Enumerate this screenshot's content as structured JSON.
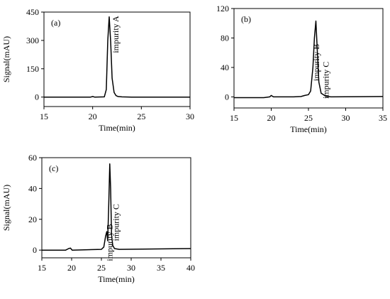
{
  "colors": {
    "background": "#ffffff",
    "axes": "#000000",
    "trace": "#000000"
  },
  "chart_data": [
    {
      "type": "line",
      "panel_label": "(a)",
      "xlabel": "Time(min)",
      "ylabel": "Signal(mAU)",
      "xlim": [
        15,
        30
      ],
      "ylim": [
        -50,
        450
      ],
      "xticks": [
        15,
        20,
        25,
        30
      ],
      "yticks": [
        0,
        150,
        300,
        450
      ],
      "grid": false,
      "annotations": [
        {
          "text": "impurity A",
          "x": 22.0,
          "y": 430
        }
      ],
      "series": [
        {
          "x": [
            15,
            19.8,
            20.0,
            20.2,
            21.2,
            21.4,
            21.55,
            21.7,
            21.85,
            22.0,
            22.2,
            22.4,
            22.6,
            23.0,
            24,
            30
          ],
          "y": [
            0,
            0,
            3,
            0,
            1,
            40,
            300,
            425,
            290,
            100,
            25,
            8,
            3,
            1,
            0,
            0
          ]
        }
      ]
    },
    {
      "type": "line",
      "panel_label": "(b)",
      "xlabel": "Time(min)",
      "ylabel": "",
      "xlim": [
        15,
        35
      ],
      "ylim": [
        -15,
        120
      ],
      "xticks": [
        15,
        20,
        25,
        30,
        35
      ],
      "yticks": [
        0,
        40,
        80,
        120
      ],
      "grid": false,
      "annotations": [
        {
          "text": "impurity B",
          "x": 25.6,
          "y": 72
        },
        {
          "text": "impurity C",
          "x": 26.9,
          "y": 48
        }
      ],
      "series": [
        {
          "x": [
            15,
            19,
            19.8,
            20.0,
            20.3,
            23,
            24,
            24.5,
            25,
            25.3,
            25.6,
            25.8,
            26.0,
            26.2,
            26.4,
            26.7,
            27.0,
            27.3,
            28,
            35
          ],
          "y": [
            -1,
            -1,
            0,
            2,
            0,
            0,
            0.5,
            2,
            3,
            8,
            40,
            80,
            103,
            60,
            20,
            5,
            3,
            1,
            0,
            0.5
          ]
        }
      ]
    },
    {
      "type": "line",
      "panel_label": "(c)",
      "xlabel": "Time(min)",
      "ylabel": "Signal(mAU)",
      "xlim": [
        15,
        40
      ],
      "ylim": [
        -5,
        60
      ],
      "xticks": [
        15,
        20,
        25,
        30,
        35,
        40
      ],
      "yticks": [
        0,
        20,
        40,
        60
      ],
      "grid": false,
      "annotations": [
        {
          "text": "impurity B",
          "x": 25.8,
          "y": 17
        },
        {
          "text": "impurity C",
          "x": 26.9,
          "y": 30
        }
      ],
      "series": [
        {
          "x": [
            15,
            19,
            19.5,
            19.8,
            20.1,
            25,
            25.4,
            25.7,
            25.9,
            26.05,
            26.2,
            26.4,
            26.55,
            26.7,
            26.9,
            27.2,
            28,
            40
          ],
          "y": [
            0,
            0,
            1,
            1.3,
            0,
            0.5,
            2,
            9,
            12,
            6,
            25,
            56,
            40,
            10,
            3,
            1,
            0.5,
            1
          ]
        }
      ]
    }
  ]
}
